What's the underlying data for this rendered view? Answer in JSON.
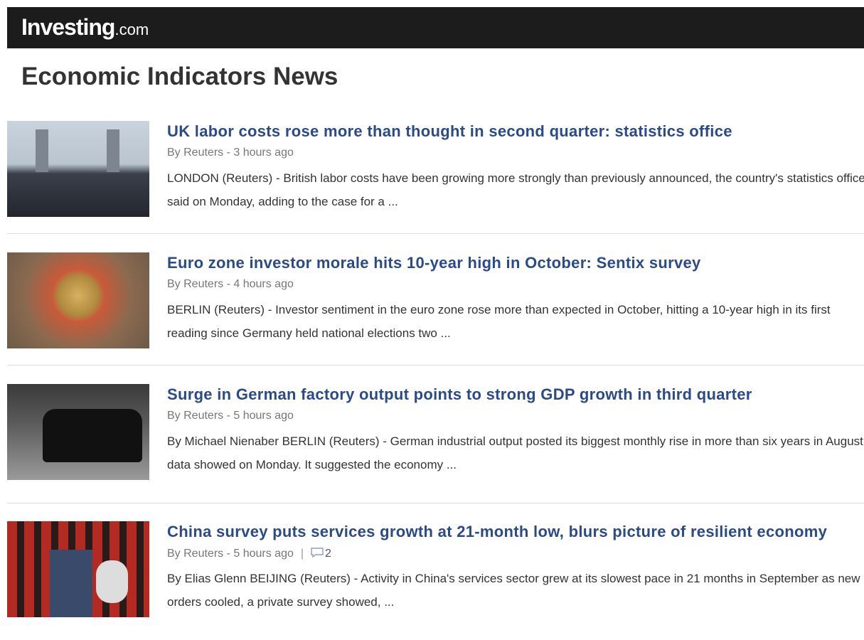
{
  "header": {
    "logo": "Investing",
    "logo_suffix": ".com"
  },
  "page_title": "Economic Indicators News",
  "articles": [
    {
      "title": "UK labor costs rose more than thought in second quarter: statistics office",
      "byline": "By Reuters - 3 hours ago",
      "summary": "LONDON (Reuters) - British labor costs have been growing more strongly than previously announced, the country's statistics office said on Monday, adding to the case for a ..."
    },
    {
      "title": "Euro zone investor morale hits 10-year high in October: Sentix survey",
      "byline": "By Reuters - 4 hours ago",
      "summary": "BERLIN (Reuters) - Investor sentiment in the euro zone rose more than expected in October, hitting a 10-year high in its first reading since Germany held national elections two ..."
    },
    {
      "title": "Surge in German factory output points to strong GDP growth in third quarter",
      "byline": "By Reuters - 5 hours ago",
      "summary": "By Michael Nienaber BERLIN (Reuters) - German industrial output posted its biggest monthly rise in more than six years in August, data showed on Monday. It suggested the economy ..."
    },
    {
      "title": "China survey puts services growth at 21-month low, blurs picture of resilient economy",
      "byline": "By Reuters - 5 hours ago",
      "comments": 2,
      "summary": "By Elias Glenn BEIJING (Reuters) - Activity in China's services sector grew at its slowest pace in 21 months in September as new orders cooled, a private survey showed, ..."
    }
  ]
}
